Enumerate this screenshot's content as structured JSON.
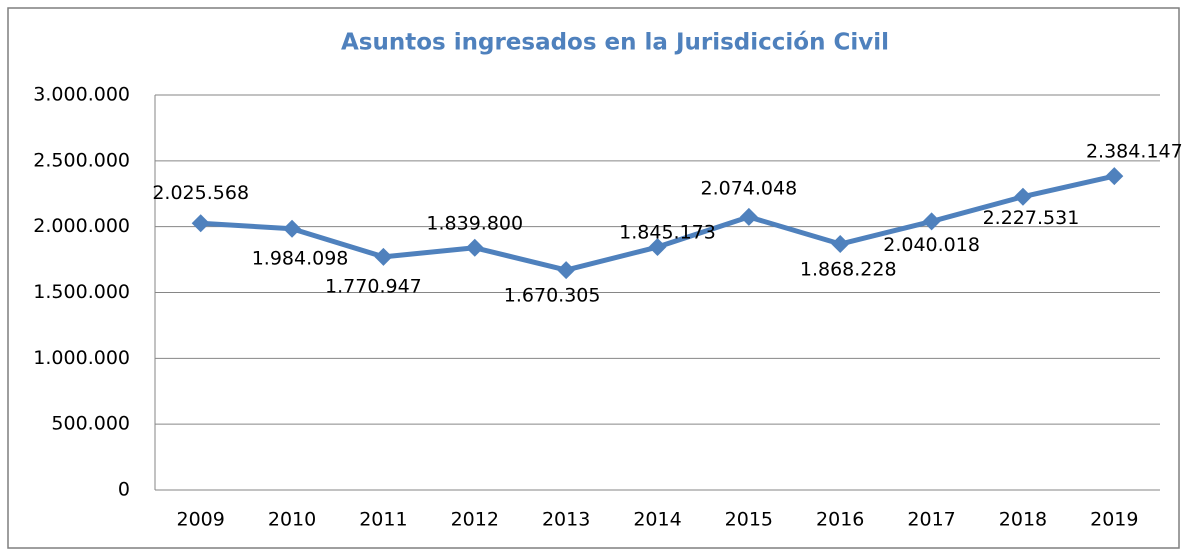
{
  "chart_data": {
    "type": "line",
    "title": "Asuntos ingresados en la Jurisdicción Civil",
    "categories": [
      "2009",
      "2010",
      "2011",
      "2012",
      "2013",
      "2014",
      "2015",
      "2016",
      "2017",
      "2018",
      "2019"
    ],
    "series": [
      {
        "name": "Asuntos ingresados",
        "color": "#4f81bd",
        "values": [
          2025568,
          1984098,
          1770947,
          1839800,
          1670305,
          1845173,
          2074048,
          1868228,
          2040018,
          2227531,
          2384147
        ],
        "value_labels": [
          "2.025.568",
          "1.984.098",
          "1.770.947",
          "1.839.800",
          "1.670.305",
          "1.845.173",
          "2.074.048",
          "1.868.228",
          "2.040.018",
          "2.227.531",
          "2.384.147"
        ]
      }
    ],
    "ylim": [
      0,
      3000000
    ],
    "yticks": [
      0,
      {
        "value": 500000,
        "label": "500.000"
      },
      {
        "value": 1000000,
        "label": "1.000.000"
      },
      {
        "value": 1500000,
        "label": "1.500.000"
      },
      {
        "value": 2000000,
        "label": "2.000.000"
      },
      {
        "value": 2500000,
        "label": "2.500.000"
      },
      {
        "value": 3000000,
        "label": "3.000.000"
      }
    ],
    "grid": true
  }
}
